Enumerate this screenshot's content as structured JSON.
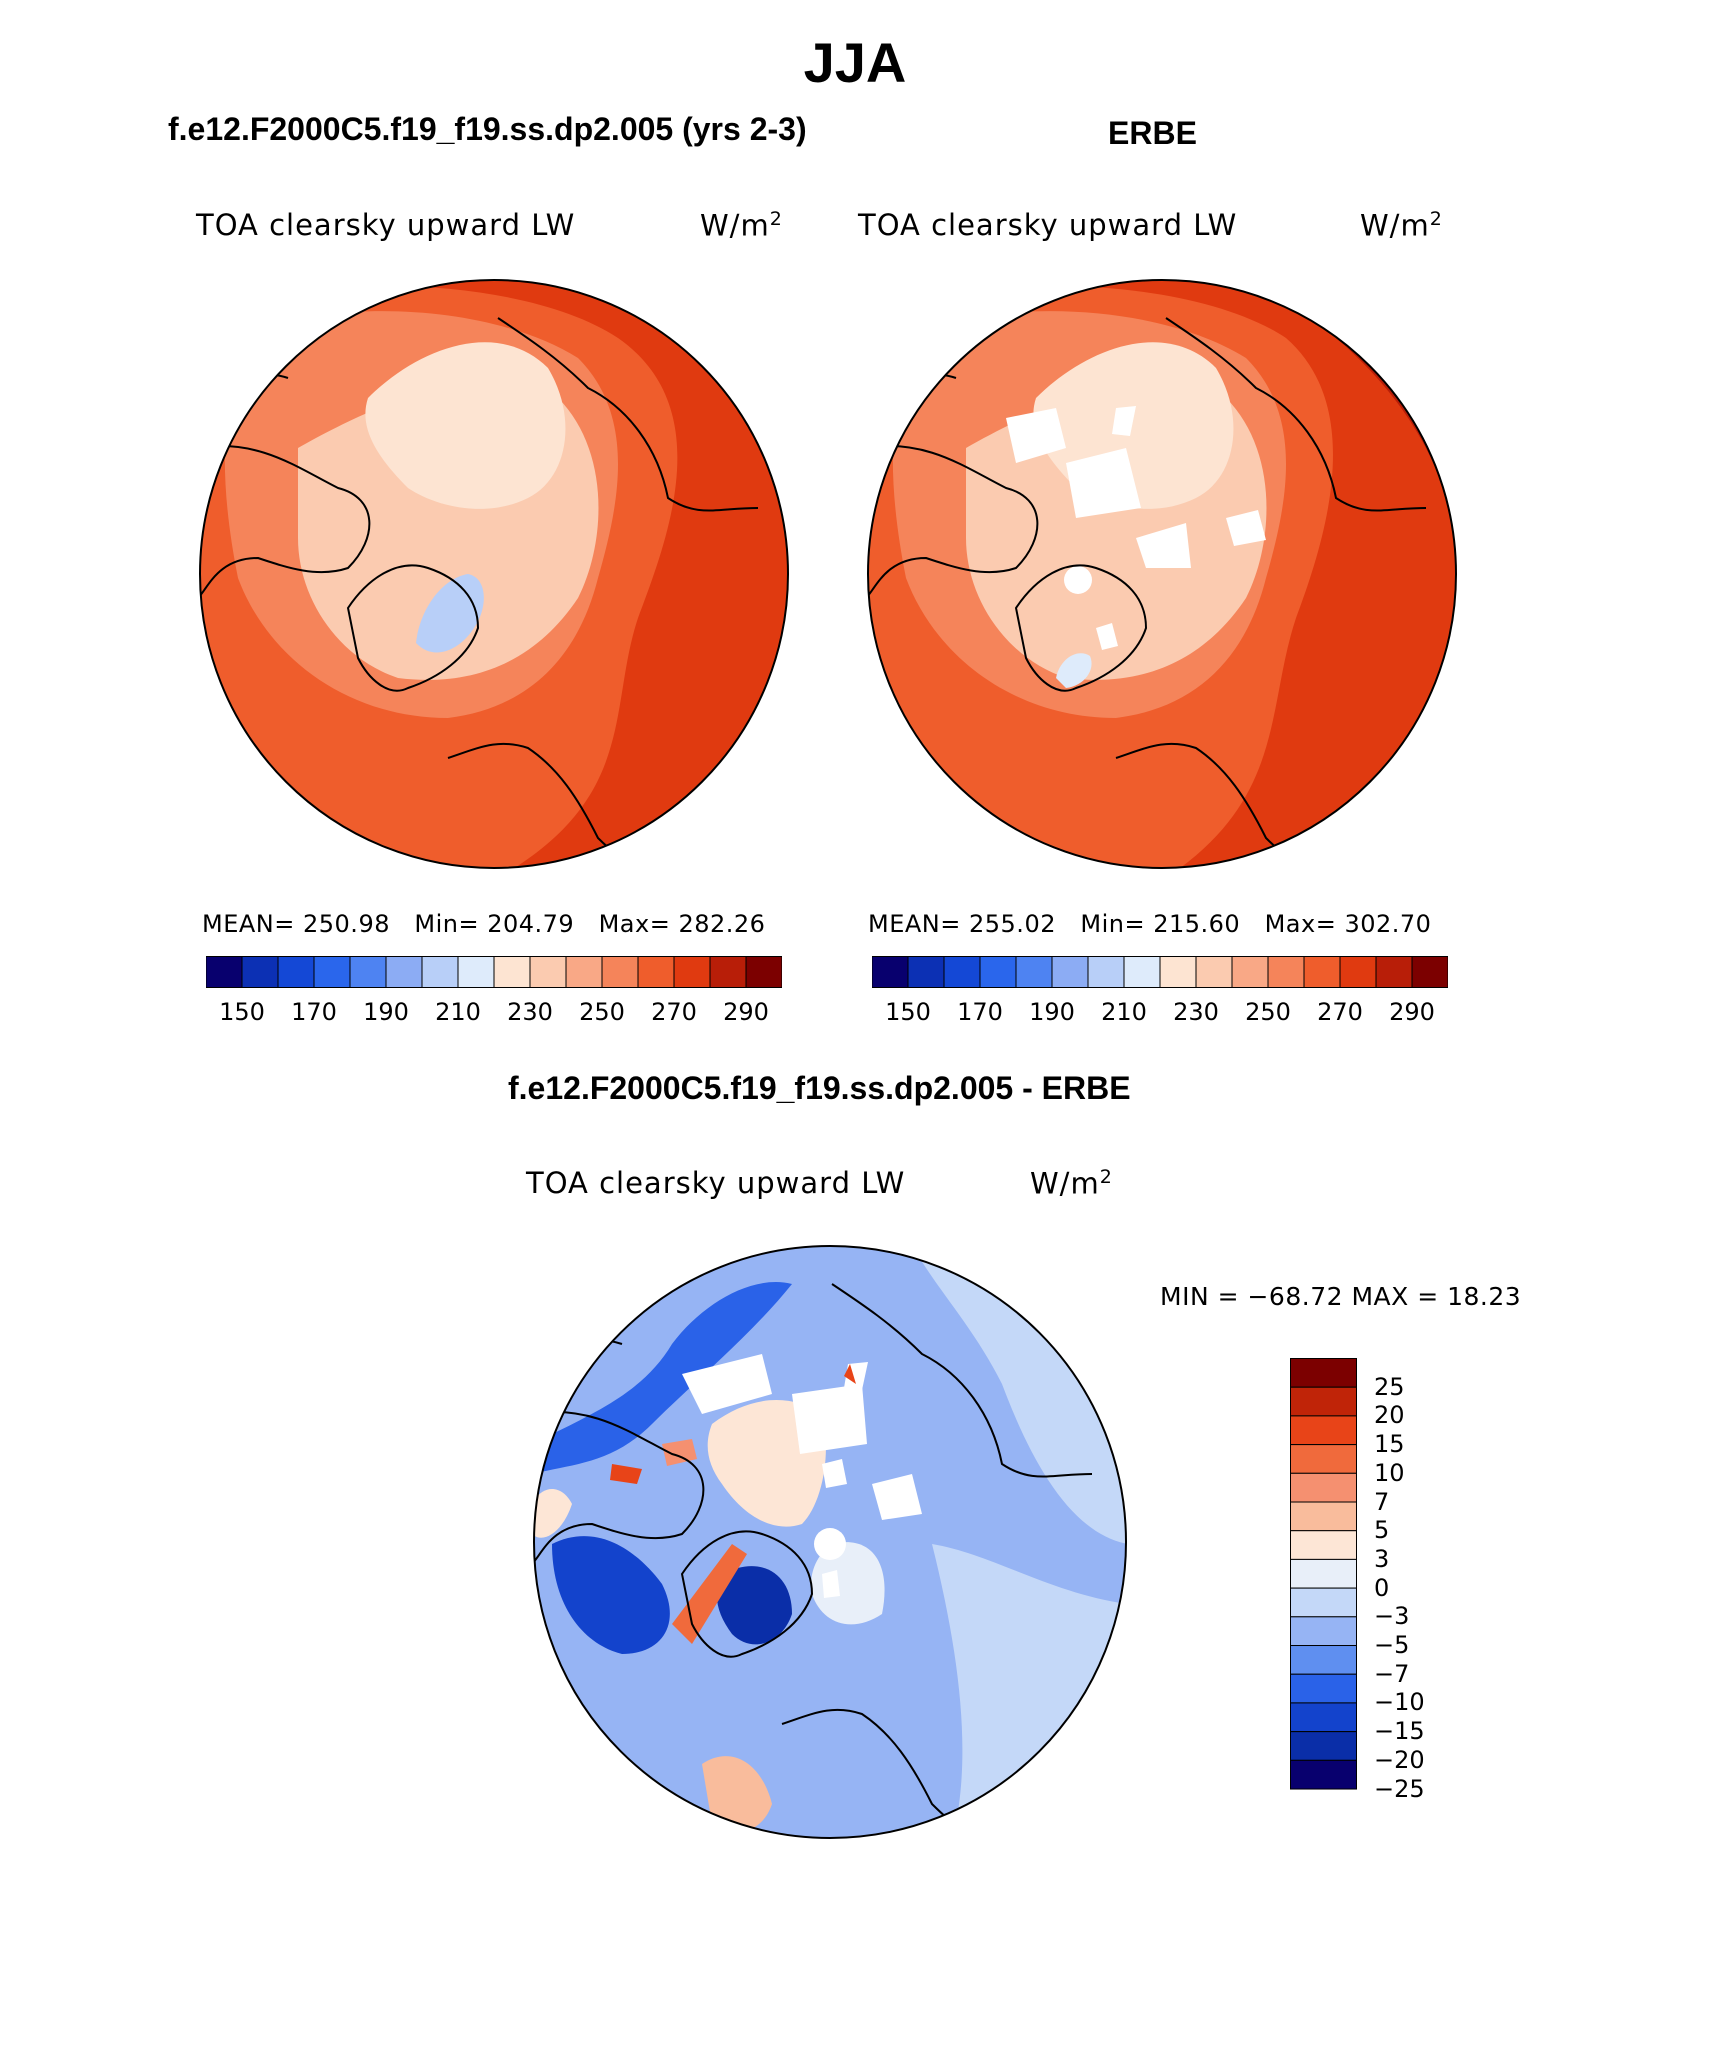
{
  "figure": {
    "title": "JJA",
    "field_label": "TOA clearsky upward LW",
    "units": "W/m",
    "units_superscript": "2"
  },
  "palette": {
    "abs_levels": [
      "#08006e",
      "#0c30b4",
      "#1448d6",
      "#2a66ec",
      "#4e83f2",
      "#8cacf4",
      "#b8cff8",
      "#deebfb",
      "#fde4d2",
      "#fbcbb0",
      "#f9a886",
      "#f5845a",
      "#ef5d2c",
      "#e03a10",
      "#b81e08",
      "#7c0000"
    ],
    "diff_levels": [
      "#08006e",
      "#0a2ea8",
      "#1343cc",
      "#2a62e8",
      "#5f8ff0",
      "#96b4f4",
      "#c4d8f8",
      "#e8eff9",
      "#fde6d6",
      "#f9bc9c",
      "#f59070",
      "#f06a3c",
      "#e84418",
      "#c02408",
      "#7c0000"
    ],
    "land": "#000000"
  },
  "chart_data": [
    {
      "type": "heatmap",
      "panel": "model",
      "title": "f.e12.F2000C5.f19_f19.ss.dp2.005 (yrs 2-3)",
      "projection": "north polar stereographic",
      "mean_label": "MEAN=",
      "mean": "250.98",
      "min_label": "Min=",
      "min": "204.79",
      "max_label": "Max=",
      "max": "282.26",
      "colorbar_ticks": [
        "150",
        "170",
        "190",
        "210",
        "230",
        "250",
        "270",
        "290"
      ],
      "field_levels": [
        {
          "level": 210,
          "color_index": 6
        },
        {
          "level": 240,
          "color_index": 8
        },
        {
          "level": 250,
          "color_index": 9
        },
        {
          "level": 260,
          "color_index": 11
        },
        {
          "level": 270,
          "color_index": 12
        },
        {
          "level": 280,
          "color_index": 13
        }
      ]
    },
    {
      "type": "heatmap",
      "panel": "obs",
      "title": "ERBE",
      "projection": "north polar stereographic",
      "mean_label": "MEAN=",
      "mean": "255.02",
      "min_label": "Min=",
      "min": "215.60",
      "max_label": "Max=",
      "max": "302.70",
      "colorbar_ticks": [
        "150",
        "170",
        "190",
        "210",
        "230",
        "250",
        "270",
        "290"
      ],
      "field_levels": [
        {
          "level": 220,
          "color_index": 7
        },
        {
          "level": 240,
          "color_index": 8
        },
        {
          "level": 250,
          "color_index": 9
        },
        {
          "level": 260,
          "color_index": 11
        },
        {
          "level": 270,
          "color_index": 12
        },
        {
          "level": 285,
          "color_index": 13
        },
        {
          "level": 300,
          "color_index": 14
        }
      ]
    },
    {
      "type": "heatmap",
      "panel": "difference",
      "title": "f.e12.F2000C5.f19_f19.ss.dp2.005 - ERBE",
      "projection": "north polar stereographic",
      "minmax_text": "MIN = −68.72 MAX =  18.23",
      "min": -68.72,
      "max": 18.23,
      "colorbar_levels": [
        "25",
        "20",
        "15",
        "10",
        "7",
        "5",
        "3",
        "0",
        "−3",
        "−5",
        "−7",
        "−10",
        "−15",
        "−20",
        "−25"
      ]
    }
  ]
}
